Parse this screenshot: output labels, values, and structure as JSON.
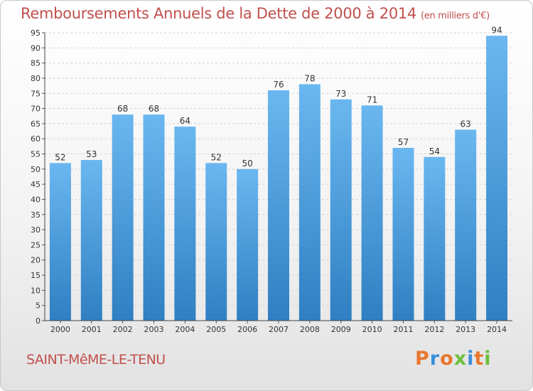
{
  "header": {
    "title": "Remboursements Annuels de la Dette de 2000 à 2014",
    "unit": "(en milliers d'€)"
  },
  "footer": {
    "commune": "SAINT-MêME-LE-TENU",
    "logo": "Proxiti"
  },
  "colors": {
    "accent": "#c0504d",
    "bar_top": "#6ab7f0",
    "bar_bottom": "#2f7fc2",
    "logo_letters": [
      "#e8772e",
      "#3a8fd8",
      "#e8772e",
      "#6cbf3b",
      "#3a8fd8",
      "#e8772e",
      "#6cbf3b"
    ]
  },
  "chart_data": {
    "type": "bar",
    "title": "Remboursements Annuels de la Dette de 2000 à 2014",
    "subtitle": "(en milliers d'€)",
    "xlabel": "",
    "ylabel": "",
    "categories": [
      "2000",
      "2001",
      "2002",
      "2003",
      "2004",
      "2005",
      "2006",
      "2007",
      "2008",
      "2009",
      "2010",
      "2011",
      "2012",
      "2013",
      "2014"
    ],
    "values": [
      52,
      53,
      68,
      68,
      64,
      52,
      50,
      76,
      78,
      73,
      71,
      57,
      54,
      63,
      94
    ],
    "ylim": [
      0,
      95
    ],
    "ytick_step": 5,
    "grid": true,
    "data_labels": true
  }
}
